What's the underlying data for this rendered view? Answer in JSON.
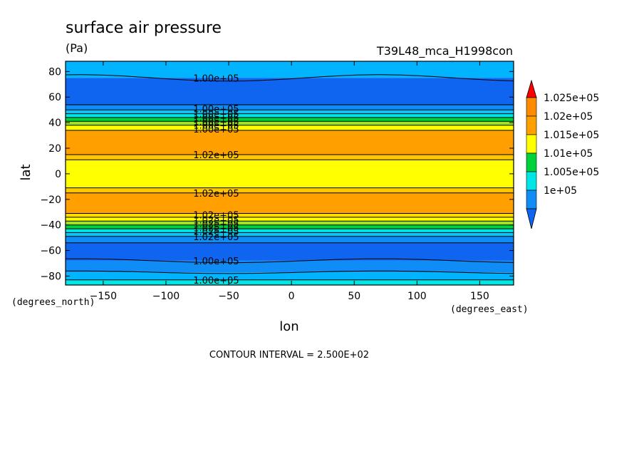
{
  "title": "surface air pressure",
  "units": "(Pa)",
  "run_label": "T39L48_mca_H1998con",
  "contour_note": "CONTOUR INTERVAL = 2.500E+02",
  "chart_data": {
    "type": "heatmap",
    "xlabel": "lon",
    "ylabel": "lat",
    "x_unit_label": "(degrees_east)",
    "y_unit_label": "(degrees_north)",
    "xlim": [
      -180,
      177
    ],
    "ylim": [
      -87,
      88
    ],
    "x_ticks": [
      -150,
      -100,
      -50,
      0,
      50,
      100,
      150
    ],
    "x_tick_labels": [
      "−150",
      "−100",
      "−50",
      "0",
      "50",
      "100",
      "150"
    ],
    "y_ticks": [
      -80,
      -60,
      -40,
      -20,
      0,
      20,
      40,
      60,
      80
    ],
    "y_tick_labels": [
      "−80",
      "−60",
      "−40",
      "−20",
      "0",
      "20",
      "40",
      "60",
      "80"
    ],
    "bands": [
      {
        "lat": [
          75,
          88
        ],
        "level": 100000,
        "color": "#00b4ff"
      },
      {
        "lat": [
          54,
          75
        ],
        "level": 99750,
        "color": "#0f64f0"
      },
      {
        "lat": [
          50,
          54
        ],
        "level": 100000,
        "color": "#0f8cf5"
      },
      {
        "lat": [
          47,
          50
        ],
        "level": 100250,
        "color": "#00c8ff"
      },
      {
        "lat": [
          44,
          47
        ],
        "level": 100500,
        "color": "#00e6e6"
      },
      {
        "lat": [
          41,
          44
        ],
        "level": 100750,
        "color": "#00d23c"
      },
      {
        "lat": [
          38,
          41
        ],
        "level": 101000,
        "color": "#9be619"
      },
      {
        "lat": [
          34,
          38
        ],
        "level": 101250,
        "color": "#ffff00"
      },
      {
        "lat": [
          15,
          34
        ],
        "level": 101750,
        "color": "#ffa000"
      },
      {
        "lat": [
          11,
          15
        ],
        "level": 102000,
        "color": "#ffc800"
      },
      {
        "lat": [
          -11,
          11
        ],
        "level": 101500,
        "color": "#ffff00"
      },
      {
        "lat": [
          -15,
          -11
        ],
        "level": 102000,
        "color": "#ffc800"
      },
      {
        "lat": [
          -31,
          -15
        ],
        "level": 101750,
        "color": "#ffa000"
      },
      {
        "lat": [
          -34,
          -31
        ],
        "level": 101500,
        "color": "#ffdc00"
      },
      {
        "lat": [
          -37,
          -34
        ],
        "level": 101250,
        "color": "#ffff00"
      },
      {
        "lat": [
          -40,
          -37
        ],
        "level": 101000,
        "color": "#9be619"
      },
      {
        "lat": [
          -43,
          -40
        ],
        "level": 100750,
        "color": "#00d23c"
      },
      {
        "lat": [
          -46,
          -43
        ],
        "level": 100500,
        "color": "#00e6e6"
      },
      {
        "lat": [
          -49,
          -46
        ],
        "level": 100250,
        "color": "#00c8ff"
      },
      {
        "lat": [
          -54,
          -49
        ],
        "level": 100000,
        "color": "#0f8cf5"
      },
      {
        "lat": [
          -68,
          -54
        ],
        "level": 99750,
        "color": "#0f64f0"
      },
      {
        "lat": [
          -77,
          -68
        ],
        "level": 100000,
        "color": "#0f8cf5"
      },
      {
        "lat": [
          -83,
          -77
        ],
        "level": 100250,
        "color": "#00b4ff"
      },
      {
        "lat": [
          -87,
          -83
        ],
        "level": 100500,
        "color": "#00e6e6"
      }
    ],
    "contour_lines": [
      {
        "lat": 75,
        "wave": 2.5,
        "label": "1.00e+05",
        "label_lon": -60
      },
      {
        "lat": 54
      },
      {
        "lat": 50
      },
      {
        "lat": 47
      },
      {
        "lat": 44
      },
      {
        "lat": 41
      },
      {
        "lat": 38
      },
      {
        "lat": 34
      },
      {
        "lat": 15,
        "label": "1.02e+05",
        "label_lon": -60
      },
      {
        "lat": 11
      },
      {
        "lat": -11
      },
      {
        "lat": -15,
        "label": "1.02e+05",
        "label_lon": -60
      },
      {
        "lat": -31
      },
      {
        "lat": -34
      },
      {
        "lat": -37
      },
      {
        "lat": -40
      },
      {
        "lat": -43
      },
      {
        "lat": -46
      },
      {
        "lat": -49
      },
      {
        "lat": -54
      },
      {
        "lat": -68,
        "wave": 1.5,
        "label": "1.00e+05",
        "label_lon": -60
      },
      {
        "lat": -77,
        "wave": 1.0
      },
      {
        "lat": -83,
        "label": "1.00e+05",
        "label_lon": -60
      }
    ],
    "stacked_labels_north": {
      "text": "1.00e+05",
      "lon": -60,
      "lats": [
        51,
        47,
        44,
        41,
        38,
        35
      ]
    },
    "stacked_labels_south": {
      "text": "1.02e+05",
      "lon": -60,
      "lats": [
        -32,
        -36,
        -39,
        -42,
        -45,
        -49
      ]
    },
    "colorbar": {
      "entries": [
        {
          "label": "1.025e+05",
          "color": "#ff8c00"
        },
        {
          "label": "1.02e+05",
          "color": "#ffa000"
        },
        {
          "label": "1.015e+05",
          "color": "#ffff00"
        },
        {
          "label": "1.01e+05",
          "color": "#00d23c"
        },
        {
          "label": "1.005e+05",
          "color": "#00e6e6"
        },
        {
          "label": "1e+05",
          "color": "#0f8cf5"
        }
      ],
      "top_color": "#ff0000",
      "bottom_color": "#0f64f0"
    }
  }
}
